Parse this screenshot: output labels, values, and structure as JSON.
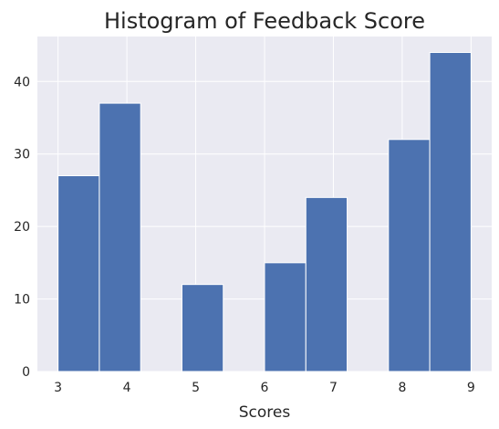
{
  "chart_data": {
    "type": "bar",
    "title": "Histogram of Feedback Score",
    "xlabel": "Scores",
    "ylabel": "",
    "bins": [
      {
        "start": 3.0,
        "end": 3.6,
        "value": 27
      },
      {
        "start": 3.6,
        "end": 4.2,
        "value": 37
      },
      {
        "start": 4.2,
        "end": 4.8,
        "value": 0
      },
      {
        "start": 4.8,
        "end": 5.4,
        "value": 12
      },
      {
        "start": 5.4,
        "end": 6.0,
        "value": 0
      },
      {
        "start": 6.0,
        "end": 6.6,
        "value": 15
      },
      {
        "start": 6.6,
        "end": 7.2,
        "value": 24
      },
      {
        "start": 7.2,
        "end": 7.8,
        "value": 0
      },
      {
        "start": 7.8,
        "end": 8.4,
        "value": 32
      },
      {
        "start": 8.4,
        "end": 9.0,
        "value": 44
      }
    ],
    "xlim": [
      2.7,
      9.3
    ],
    "ylim": [
      0,
      46.2
    ],
    "xticks": [
      "3",
      "4",
      "5",
      "6",
      "7",
      "8",
      "9"
    ],
    "yticks": [
      "0",
      "10",
      "20",
      "30",
      "40"
    ],
    "grid": true,
    "legend": "none",
    "colors": {
      "bar": "#4c72b0",
      "bar_edge": "#ffffff",
      "plot_background": "#eaeaf2",
      "grid": "#ffffff",
      "text": "#262626"
    }
  }
}
